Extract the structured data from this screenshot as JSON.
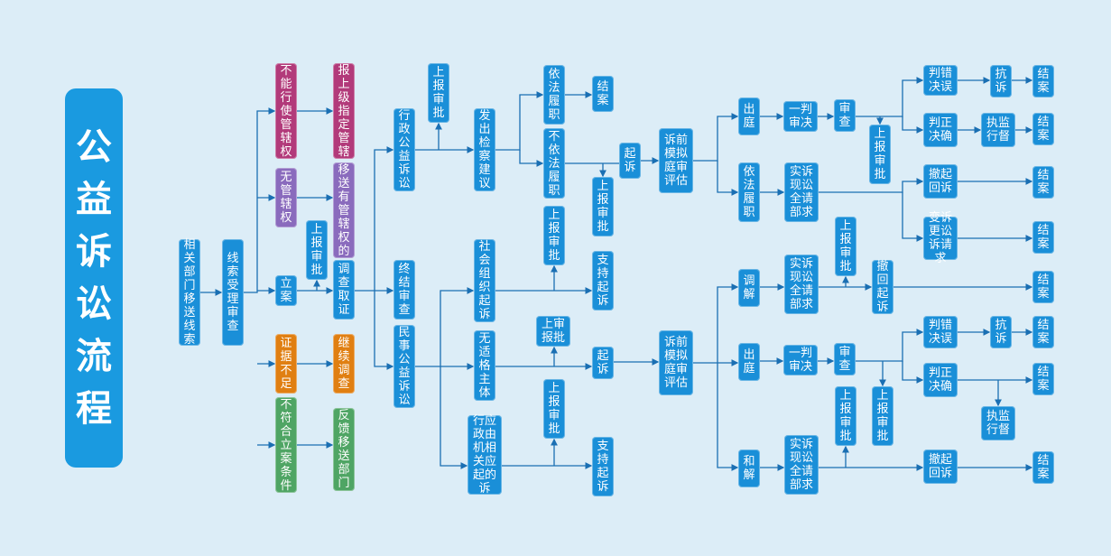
{
  "title": "公益诉讼流程",
  "colors": {
    "background": "#dcedf7",
    "blue": "#1a8fd8",
    "magenta": "#b23a7a",
    "purple": "#8a6bbd",
    "orange": "#e07f12",
    "green": "#4fa564",
    "line": "#1a6fb3"
  },
  "nodes": {
    "n1": "相关部门移送线索",
    "n2": "线索受理审查",
    "n3": "不能行使管辖权",
    "n4": "报上级指定管辖",
    "n5": "无管辖权",
    "n6": "移送有管辖权的",
    "n7": "上报审批",
    "n8": "立案",
    "n9": "调查取证",
    "n10": "证据不足",
    "n11": "继续调查",
    "n12": "不符合立案条件",
    "n13": "反馈移送部门",
    "n14": "行政公益诉讼",
    "n15": "终结审查",
    "n16": "民事公益诉讼",
    "n17": "上报审批",
    "n18": "发出检察建议",
    "n19": "依法履职",
    "n20": "不依法履职",
    "n21": "结案",
    "n22": "上报审批",
    "n23": "起诉",
    "n24": "诉前模拟庭审评估",
    "n25": "出庭",
    "n26": "依法履职",
    "n27": "一判审决",
    "n28": "审查",
    "n29": "上报审批",
    "n30": "判错决误",
    "n31": "抗诉",
    "n32": "结案",
    "n33": "判正决确",
    "n34": "执监行督",
    "n35": "结案",
    "n36": "实诉现讼全请部求",
    "n37": "撤起回诉",
    "n38": "结案",
    "n39": "变诉更讼诉请求",
    "n40": "结案",
    "n41": "社会组织起诉",
    "n42": "上报审批",
    "n43": "支持起诉",
    "n44": "无适格主体",
    "n45": "上审报批",
    "n46": "起诉",
    "n47": "诉前模拟庭审评估",
    "n48": "调解",
    "n49": "实诉现讼全请部求",
    "n50": "上报审批",
    "n51": "撤回起诉",
    "n52": "结案",
    "n53": "出庭",
    "n54": "一判审决",
    "n55": "审查",
    "n56": "判错决误",
    "n57": "抗诉",
    "n58": "结案",
    "n59": "判正决确",
    "n60": "结案",
    "n61": "执监行督",
    "n62": "上报审批",
    "n63": "上报审批",
    "n64": "行应政由机相关应起的诉",
    "n65": "上报审批",
    "n66": "支持起诉",
    "n67": "和解",
    "n68": "实诉现讼全请部求",
    "n69": "撤起回诉",
    "n70": "结案"
  }
}
